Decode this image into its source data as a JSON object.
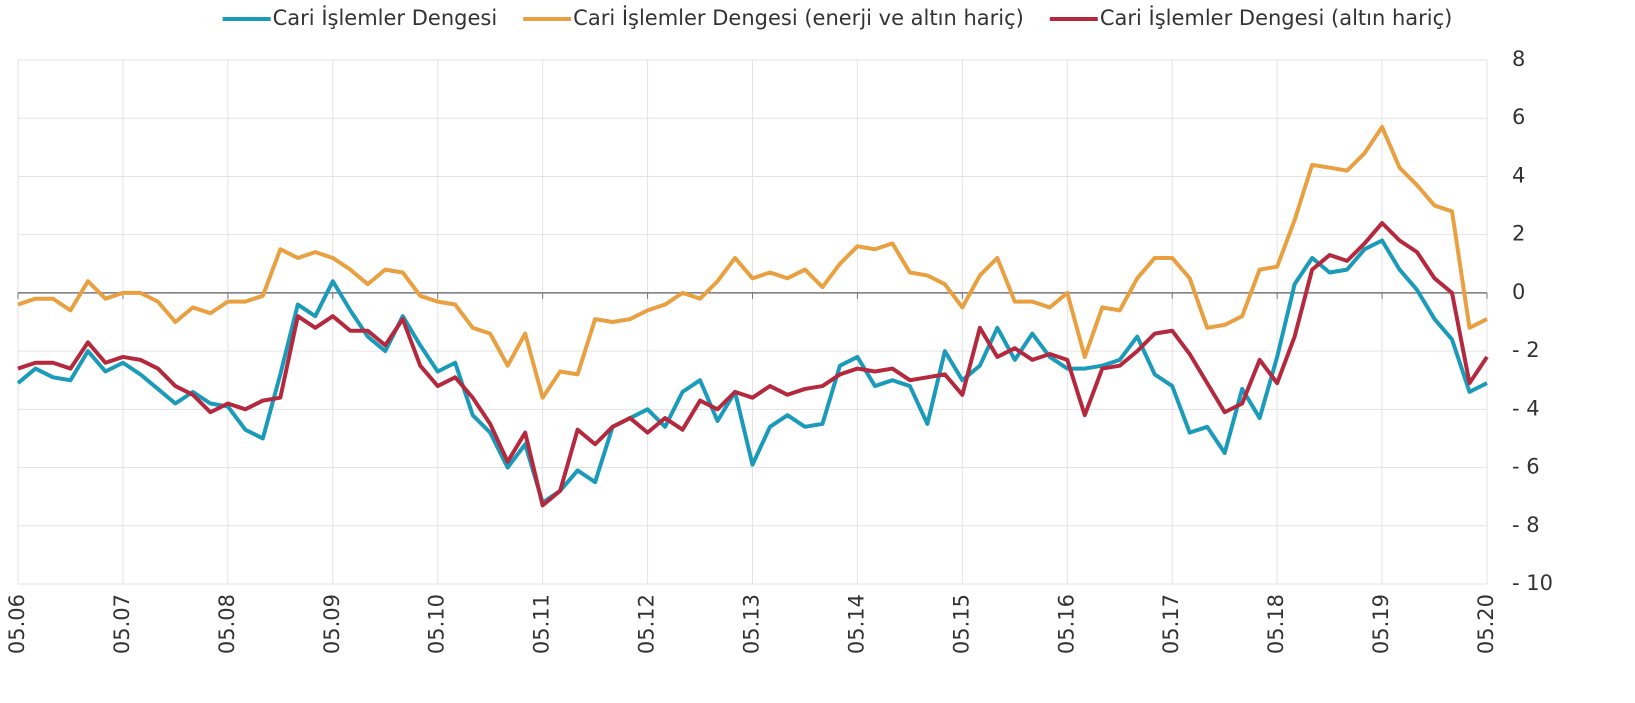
{
  "chart_data": {
    "type": "line",
    "categories": [
      "05.06",
      null,
      null,
      null,
      null,
      null,
      "05.07",
      null,
      null,
      null,
      null,
      null,
      "05.08",
      null,
      null,
      null,
      null,
      null,
      "05.09",
      null,
      null,
      null,
      null,
      null,
      "05.10",
      null,
      null,
      null,
      null,
      null,
      "05.11",
      null,
      null,
      null,
      null,
      null,
      "05.12",
      null,
      null,
      null,
      null,
      null,
      "05.13",
      null,
      null,
      null,
      null,
      null,
      "05.14",
      null,
      null,
      null,
      null,
      null,
      "05.15",
      null,
      null,
      null,
      null,
      null,
      "05.16",
      null,
      null,
      null,
      null,
      null,
      "05.17",
      null,
      null,
      null,
      null,
      null,
      "05.18",
      null,
      null,
      null,
      null,
      null,
      "05.19",
      null,
      null,
      null,
      null,
      null,
      "05.20"
    ],
    "series": [
      {
        "name": "Cari İşlemler Dengesi",
        "color": "#1a9bba",
        "values": [
          -3.1,
          -2.6,
          -2.9,
          -3.0,
          -2.0,
          -2.7,
          -2.4,
          -2.8,
          -3.3,
          -3.8,
          -3.4,
          -3.8,
          -3.9,
          -4.7,
          -5.0,
          -2.8,
          -0.4,
          -0.8,
          0.4,
          -0.6,
          -1.5,
          -2.0,
          -0.8,
          -1.8,
          -2.7,
          -2.4,
          -4.2,
          -4.8,
          -6.0,
          -5.2,
          -7.2,
          -6.8,
          -6.1,
          -6.5,
          -4.6,
          -4.3,
          -4.0,
          -4.6,
          -3.4,
          -3.0,
          -4.4,
          -3.4,
          -5.9,
          -4.6,
          -4.2,
          -4.6,
          -4.5,
          -2.5,
          -2.2,
          -3.2,
          -3.0,
          -3.2,
          -4.5,
          -2.0,
          -3.0,
          -2.5,
          -1.2,
          -2.3,
          -1.4,
          -2.2,
          -2.6,
          -2.6,
          -2.5,
          -2.3,
          -1.5,
          -2.8,
          -3.2,
          -4.8,
          -4.6,
          -5.5,
          -3.3,
          -4.3,
          -2.2,
          0.3,
          1.2,
          0.7,
          0.8,
          1.5,
          1.8,
          0.8,
          0.1,
          -0.9,
          -1.6,
          -3.4,
          -3.1
        ]
      },
      {
        "name": "Cari İşlemler Dengesi (enerji ve altın hariç)",
        "color": "#e8a040",
        "values": [
          -0.4,
          -0.2,
          -0.2,
          -0.6,
          0.4,
          -0.2,
          0.0,
          0.0,
          -0.3,
          -1.0,
          -0.5,
          -0.7,
          -0.3,
          -0.3,
          -0.1,
          1.5,
          1.2,
          1.4,
          1.2,
          0.8,
          0.3,
          0.8,
          0.7,
          -0.1,
          -0.3,
          -0.4,
          -1.2,
          -1.4,
          -2.5,
          -1.4,
          -3.6,
          -2.7,
          -2.8,
          -0.9,
          -1.0,
          -0.9,
          -0.6,
          -0.4,
          0.0,
          -0.2,
          0.4,
          1.2,
          0.5,
          0.7,
          0.5,
          0.8,
          0.2,
          1.0,
          1.6,
          1.5,
          1.7,
          0.7,
          0.6,
          0.3,
          -0.5,
          0.6,
          1.2,
          -0.3,
          -0.3,
          -0.5,
          0.0,
          -2.2,
          -0.5,
          -0.6,
          0.5,
          1.2,
          1.2,
          0.5,
          -1.2,
          -1.1,
          -0.8,
          0.8,
          0.9,
          2.5,
          4.4,
          4.3,
          4.2,
          4.8,
          5.7,
          4.3,
          3.7,
          3.0,
          2.8,
          -1.2,
          -0.9
        ]
      },
      {
        "name": "Cari İşlemler Dengesi (altın hariç)",
        "color": "#b5293e",
        "values": [
          -2.6,
          -2.4,
          -2.4,
          -2.6,
          -1.7,
          -2.4,
          -2.2,
          -2.3,
          -2.6,
          -3.2,
          -3.5,
          -4.1,
          -3.8,
          -4.0,
          -3.7,
          -3.6,
          -0.8,
          -1.2,
          -0.8,
          -1.3,
          -1.3,
          -1.8,
          -0.9,
          -2.5,
          -3.2,
          -2.9,
          -3.6,
          -4.5,
          -5.8,
          -4.8,
          -7.3,
          -6.8,
          -4.7,
          -5.2,
          -4.6,
          -4.3,
          -4.8,
          -4.3,
          -4.7,
          -3.7,
          -4.0,
          -3.4,
          -3.6,
          -3.2,
          -3.5,
          -3.3,
          -3.2,
          -2.8,
          -2.6,
          -2.7,
          -2.6,
          -3.0,
          -2.9,
          -2.8,
          -3.5,
          -1.2,
          -2.2,
          -1.9,
          -2.3,
          -2.1,
          -2.3,
          -4.2,
          -2.6,
          -2.5,
          -2.0,
          -1.4,
          -1.3,
          -2.1,
          -3.1,
          -4.1,
          -3.8,
          -2.3,
          -3.1,
          -1.5,
          0.8,
          1.3,
          1.1,
          1.7,
          2.4,
          1.8,
          1.4,
          0.5,
          0.0,
          -3.1,
          -2.2
        ]
      }
    ],
    "ylim": [
      -10,
      8
    ],
    "yticks": [
      8,
      6,
      4,
      2,
      0,
      {
        "value": -2,
        "label": "- 2"
      },
      {
        "value": -4,
        "label": "- 4"
      },
      {
        "value": -6,
        "label": "- 6"
      },
      {
        "value": -8,
        "label": "- 8"
      },
      {
        "value": -10,
        "label": "- 10"
      }
    ],
    "grid": true,
    "legend": "top"
  }
}
